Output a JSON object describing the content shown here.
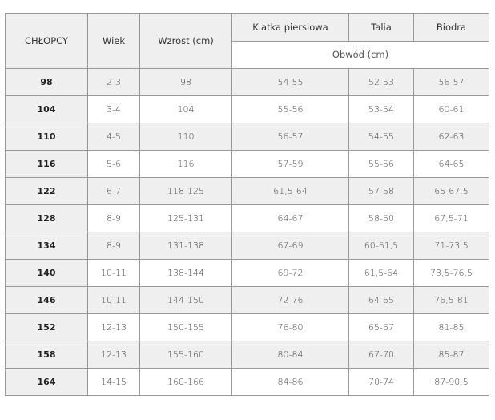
{
  "headers": {
    "size": "CHŁOPCY",
    "age": "Wiek",
    "height": "Wzrost (cm)",
    "chest": "Klatka piersiowa",
    "waist": "Talia",
    "hips": "Biodra",
    "circumference": "Obwód (cm)"
  },
  "rows": [
    [
      "98",
      "2-3",
      "98",
      "54-55",
      "52-53",
      "56-57"
    ],
    [
      "104",
      "3-4",
      "104",
      "55-56",
      "53-54",
      "60-61"
    ],
    [
      "110",
      "4-5",
      "110",
      "56-57",
      "54-55",
      "62-63"
    ],
    [
      "116",
      "5-6",
      "116",
      "57-59",
      "55-56",
      "64-65"
    ],
    [
      "122",
      "6-7",
      "118-125",
      "61,5-64",
      "57-58",
      "65-67,5"
    ],
    [
      "128",
      "8-9",
      "125-131",
      "64-67",
      "58-60",
      "67,5-71"
    ],
    [
      "134",
      "8-9",
      "131-138",
      "67-69",
      "60-61,5",
      "71-73,5"
    ],
    [
      "140",
      "10-11",
      "138-144",
      "69-72",
      "61,5-64",
      "73,5-76,5"
    ],
    [
      "146",
      "10-11",
      "144-150",
      "72-76",
      "64-65",
      "76,5-81"
    ],
    [
      "152",
      "12-13",
      "150-155",
      "76-80",
      "65-67",
      "81-85"
    ],
    [
      "158",
      "12-13",
      "155-160",
      "80-84",
      "67-70",
      "85-87"
    ],
    [
      "164",
      "14-15",
      "160-166",
      "84-86",
      "70-74",
      "87-90,5"
    ]
  ]
}
